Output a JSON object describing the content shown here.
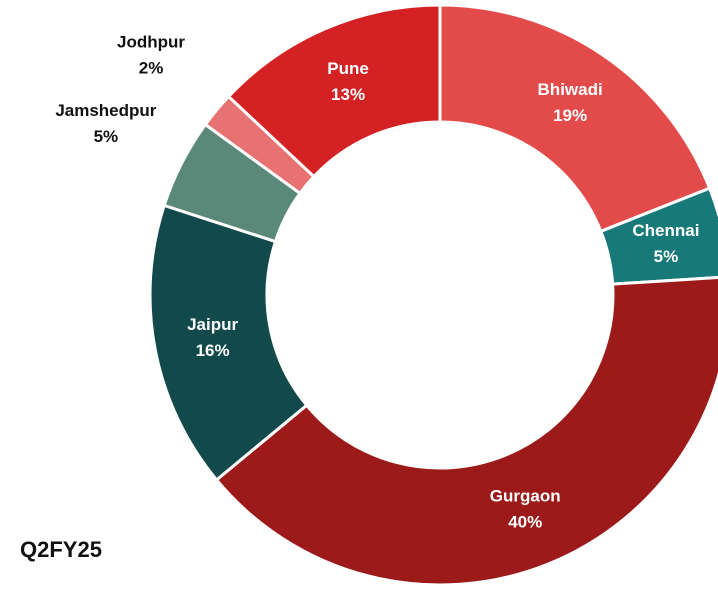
{
  "chart_data": {
    "type": "pie",
    "title": "Q2FY25",
    "categories": [
      "Bhiwadi",
      "Chennai",
      "Gurgaon",
      "Jaipur",
      "Jamshedpur",
      "Jodhpur",
      "Pune"
    ],
    "values": [
      19,
      5,
      40,
      16,
      5,
      2,
      13
    ],
    "value_labels": [
      "19%",
      "5%",
      "40%",
      "16%",
      "5%",
      "2%",
      "13%"
    ],
    "colors": [
      "#e34a4a",
      "#177a78",
      "#9d1a1a",
      "#124a4b",
      "#5a897a",
      "#e87272",
      "#d42123"
    ]
  }
}
